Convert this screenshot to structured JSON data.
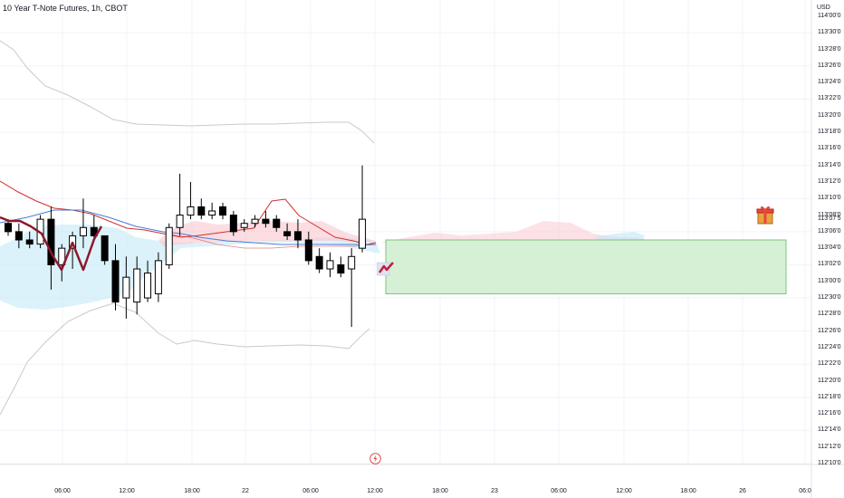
{
  "header": {
    "title": "10 Year T-Note Futures, 1h, CBOT"
  },
  "price_axis": {
    "currency": "USD",
    "labels": [
      "114'00'0",
      "113'30'0",
      "113'28'0",
      "113'26'0",
      "113'24'0",
      "113'22'0",
      "113'20'0",
      "113'18'0",
      "113'16'0",
      "113'14'0",
      "113'12'0",
      "113'10'0",
      "113'08'0",
      "113'07'5",
      "113'06'0",
      "113'04'0",
      "113'02'0",
      "113'00'0",
      "112'30'0",
      "112'28'0",
      "112'26'0",
      "112'24'0",
      "112'22'0",
      "112'20'0",
      "112'18'0",
      "112'16'0",
      "112'14'0",
      "112'12'0",
      "112'10'0"
    ]
  },
  "time_axis": {
    "labels": [
      "06:00",
      "12:00",
      "18:00",
      "22",
      "06:00",
      "12:00",
      "18:00",
      "23",
      "06:00",
      "12:00",
      "18:00",
      "26",
      "06:0"
    ]
  },
  "icons": {
    "gift": "gift-icon",
    "lightning": "lightning-icon",
    "strategy": "strategy-icon"
  },
  "colors": {
    "bull_body": "#ffffff",
    "bear_body": "#000000",
    "wick": "#000000",
    "band_line": "#c9c9c9",
    "cloud_bull": "#bfe8f8",
    "cloud_bear": "#f9c6cf",
    "tenkan": "#d32f2f",
    "kijun": "#4a7bd8",
    "zigzag": "#8b1a2b",
    "target_zone_fill": "#d6f0d6",
    "target_zone_border": "#7bc47b",
    "grid": "#f0f3fa"
  },
  "chart_data": {
    "type": "candlestick",
    "ylim": [
      "112'10'0",
      "114'00'0"
    ],
    "last_price": "113'07'5",
    "candles": [
      {
        "o": "113'07'0",
        "h": "113'07'5",
        "l": "113'05'5",
        "c": "113'06'0"
      },
      {
        "o": "113'06'0",
        "h": "113'07'0",
        "l": "113'04'0",
        "c": "113'05'0"
      },
      {
        "o": "113'05'0",
        "h": "113'06'0",
        "l": "113'04'0",
        "c": "113'04'5"
      },
      {
        "o": "113'04'5",
        "h": "113'08'0",
        "l": "113'04'0",
        "c": "113'07'5"
      },
      {
        "o": "113'07'5",
        "h": "113'09'0",
        "l": "112'31'0",
        "c": "113'02'0"
      },
      {
        "o": "113'02'0",
        "h": "113'04'5",
        "l": "113'00'0",
        "c": "113'04'0"
      },
      {
        "o": "113'04'0",
        "h": "113'06'0",
        "l": "113'01'5",
        "c": "113'05'5"
      },
      {
        "o": "113'05'5",
        "h": "113'10'0",
        "l": "113'04'0",
        "c": "113'06'5"
      },
      {
        "o": "113'06'5",
        "h": "113'08'0",
        "l": "113'05'0",
        "c": "113'05'5"
      },
      {
        "o": "113'05'5",
        "h": "113'05'5",
        "l": "113'02'0",
        "c": "113'02'5"
      },
      {
        "o": "113'02'5",
        "h": "113'04'5",
        "l": "112'28'5",
        "c": "112'29'5"
      },
      {
        "o": "112'30'0",
        "h": "113'03'0",
        "l": "112'27'5",
        "c": "113'00'5"
      },
      {
        "o": "112'29'5",
        "h": "113'03'0",
        "l": "112'28'0",
        "c": "113'01'5"
      },
      {
        "o": "112'30'0",
        "h": "113'02'5",
        "l": "112'29'5",
        "c": "113'01'0"
      },
      {
        "o": "112'30'5",
        "h": "113'03'5",
        "l": "112'29'5",
        "c": "113'02'5"
      },
      {
        "o": "113'02'0",
        "h": "113'07'0",
        "l": "113'01'5",
        "c": "113'06'5"
      },
      {
        "o": "113'06'5",
        "h": "113'13'0",
        "l": "113'05'5",
        "c": "113'08'0"
      },
      {
        "o": "113'08'0",
        "h": "113'12'0",
        "l": "113'07'5",
        "c": "113'09'0"
      },
      {
        "o": "113'09'0",
        "h": "113'10'0",
        "l": "113'07'5",
        "c": "113'08'0"
      },
      {
        "o": "113'08'0",
        "h": "113'09'5",
        "l": "113'07'5",
        "c": "113'08'5"
      },
      {
        "o": "113'09'0",
        "h": "113'09'5",
        "l": "113'07'5",
        "c": "113'08'0"
      },
      {
        "o": "113'08'0",
        "h": "113'08'5",
        "l": "113'05'5",
        "c": "113'06'0"
      },
      {
        "o": "113'06'5",
        "h": "113'07'5",
        "l": "113'06'0",
        "c": "113'07'0"
      },
      {
        "o": "113'07'0",
        "h": "113'08'0",
        "l": "113'06'5",
        "c": "113'07'5"
      },
      {
        "o": "113'07'5",
        "h": "113'08'5",
        "l": "113'06'5",
        "c": "113'07'0"
      },
      {
        "o": "113'07'5",
        "h": "113'08'0",
        "l": "113'06'0",
        "c": "113'06'5"
      },
      {
        "o": "113'06'0",
        "h": "113'07'0",
        "l": "113'05'0",
        "c": "113'05'5"
      },
      {
        "o": "113'06'0",
        "h": "113'07'5",
        "l": "113'04'0",
        "c": "113'05'0"
      },
      {
        "o": "113'05'0",
        "h": "113'06'0",
        "l": "113'02'0",
        "c": "113'02'5"
      },
      {
        "o": "113'03'0",
        "h": "113'04'0",
        "l": "113'01'0",
        "c": "113'01'5"
      },
      {
        "o": "113'01'5",
        "h": "113'03'5",
        "l": "113'00'5",
        "c": "113'02'5"
      },
      {
        "o": "113'02'0",
        "h": "113'03'0",
        "l": "113'00'5",
        "c": "113'01'0"
      },
      {
        "o": "113'01'5",
        "h": "113'04'0",
        "l": "112'26'5",
        "c": "113'03'0"
      },
      {
        "o": "113'04'0",
        "h": "113'14'0",
        "l": "113'03'5",
        "c": "113'07'5"
      }
    ],
    "target_zone": {
      "top": "113'05'0",
      "bottom": "112'30'5"
    }
  }
}
